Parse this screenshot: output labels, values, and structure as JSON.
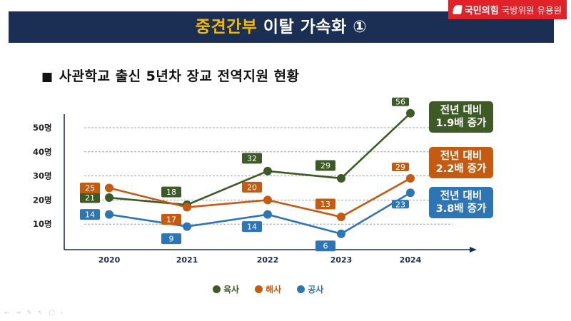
{
  "header": {
    "title_highlight": "중견간부",
    "title_rest": " 이탈 가속화 ①",
    "badge_party": "국민의힘",
    "badge_member": "국방위원 유용원"
  },
  "subtitle": {
    "bullet": "■",
    "text": "사관학교 출신 5년차 장교 전역지원 현황"
  },
  "colors": {
    "header_bg": "#1b2f55",
    "title_highlight": "#f5b800",
    "badge_bg": "#e12228",
    "army": "#3d5a27",
    "navy": "#c55a11",
    "airforce": "#2e75b6"
  },
  "chart_data": {
    "type": "line",
    "title": "사관학교 출신 5년차 장교 전역지원 현황",
    "xlabel": "",
    "ylabel": "",
    "categories": [
      "2020",
      "2021",
      "2022",
      "2023",
      "2024"
    ],
    "yticks": [
      "10명",
      "20명",
      "30명",
      "40명",
      "50명"
    ],
    "ytick_values": [
      10,
      20,
      30,
      40,
      50
    ],
    "ylim": [
      0,
      60
    ],
    "grid": true,
    "legend_position": "bottom",
    "series": [
      {
        "name": "육사",
        "color": "#3d5a27",
        "values": [
          21,
          18,
          32,
          29,
          56
        ],
        "label_pos": [
          "left",
          "above",
          "above",
          "above",
          "above"
        ]
      },
      {
        "name": "해사",
        "color": "#c55a11",
        "values": [
          25,
          17,
          20,
          13,
          29
        ],
        "label_pos": [
          "left",
          "below",
          "above",
          "above",
          "above"
        ]
      },
      {
        "name": "공사",
        "color": "#2e75b6",
        "values": [
          14,
          9,
          14,
          6,
          23
        ],
        "label_pos": [
          "left",
          "below",
          "below",
          "below",
          "below"
        ]
      }
    ],
    "annotations": [
      {
        "series": "육사",
        "line1": "전년 대비",
        "line2": "1.9배 증가"
      },
      {
        "series": "해사",
        "line1": "전년 대비",
        "line2": "2.2배 증가"
      },
      {
        "series": "공사",
        "line1": "전년 대비",
        "line2": "3.8배 증가"
      }
    ]
  },
  "presentation_controls": [
    "←",
    "→",
    "✎",
    "↖",
    "▢",
    "›"
  ]
}
